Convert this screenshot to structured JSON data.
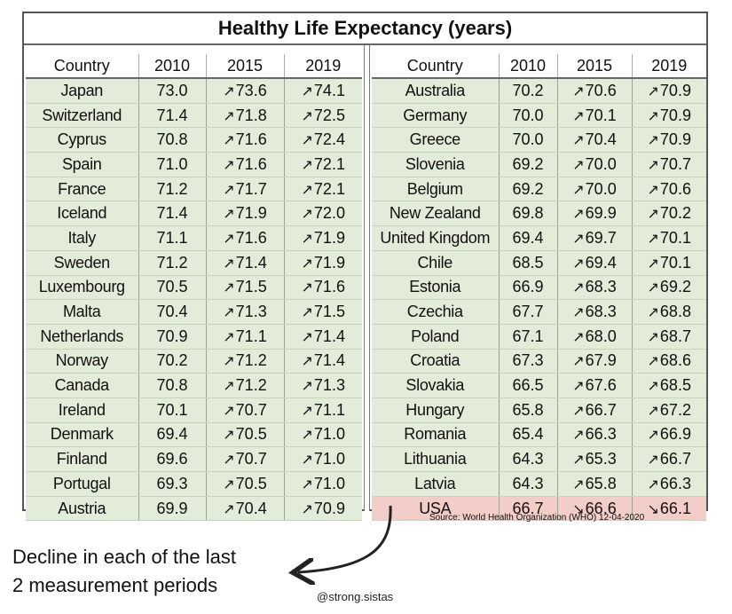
{
  "chart_data": {
    "type": "table",
    "title": "Healthy Life Expectancy (years)",
    "columns": [
      "Country",
      "2010",
      "2015",
      "2019"
    ],
    "arrow_up": "↗",
    "arrow_down": "↘",
    "highlight_color": "#f3cdc8",
    "row_color": "#e3ecd9",
    "left_rows": [
      {
        "country": "Japan",
        "y2010": "73.0",
        "y2015": "73.6",
        "t2015": "up",
        "y2019": "74.1",
        "t2019": "up"
      },
      {
        "country": "Switzerland",
        "y2010": "71.4",
        "y2015": "71.8",
        "t2015": "up",
        "y2019": "72.5",
        "t2019": "up"
      },
      {
        "country": "Cyprus",
        "y2010": "70.8",
        "y2015": "71.6",
        "t2015": "up",
        "y2019": "72.4",
        "t2019": "up"
      },
      {
        "country": "Spain",
        "y2010": "71.0",
        "y2015": "71.6",
        "t2015": "up",
        "y2019": "72.1",
        "t2019": "up"
      },
      {
        "country": "France",
        "y2010": "71.2",
        "y2015": "71.7",
        "t2015": "up",
        "y2019": "72.1",
        "t2019": "up"
      },
      {
        "country": "Iceland",
        "y2010": "71.4",
        "y2015": "71.9",
        "t2015": "up",
        "y2019": "72.0",
        "t2019": "up"
      },
      {
        "country": "Italy",
        "y2010": "71.1",
        "y2015": "71.6",
        "t2015": "up",
        "y2019": "71.9",
        "t2019": "up"
      },
      {
        "country": "Sweden",
        "y2010": "71.2",
        "y2015": "71.4",
        "t2015": "up",
        "y2019": "71.9",
        "t2019": "up"
      },
      {
        "country": "Luxembourg",
        "y2010": "70.5",
        "y2015": "71.5",
        "t2015": "up",
        "y2019": "71.6",
        "t2019": "up"
      },
      {
        "country": "Malta",
        "y2010": "70.4",
        "y2015": "71.3",
        "t2015": "up",
        "y2019": "71.5",
        "t2019": "up"
      },
      {
        "country": "Netherlands",
        "y2010": "70.9",
        "y2015": "71.1",
        "t2015": "up",
        "y2019": "71.4",
        "t2019": "up"
      },
      {
        "country": "Norway",
        "y2010": "70.2",
        "y2015": "71.2",
        "t2015": "up",
        "y2019": "71.4",
        "t2019": "up"
      },
      {
        "country": "Canada",
        "y2010": "70.8",
        "y2015": "71.2",
        "t2015": "up",
        "y2019": "71.3",
        "t2019": "up"
      },
      {
        "country": "Ireland",
        "y2010": "70.1",
        "y2015": "70.7",
        "t2015": "up",
        "y2019": "71.1",
        "t2019": "up"
      },
      {
        "country": "Denmark",
        "y2010": "69.4",
        "y2015": "70.5",
        "t2015": "up",
        "y2019": "71.0",
        "t2019": "up"
      },
      {
        "country": "Finland",
        "y2010": "69.6",
        "y2015": "70.7",
        "t2015": "up",
        "y2019": "71.0",
        "t2019": "up"
      },
      {
        "country": "Portugal",
        "y2010": "69.3",
        "y2015": "70.5",
        "t2015": "up",
        "y2019": "71.0",
        "t2019": "up"
      },
      {
        "country": "Austria",
        "y2010": "69.9",
        "y2015": "70.4",
        "t2015": "up",
        "y2019": "70.9",
        "t2019": "up"
      }
    ],
    "right_rows": [
      {
        "country": "Australia",
        "y2010": "70.2",
        "y2015": "70.6",
        "t2015": "up",
        "y2019": "70.9",
        "t2019": "up"
      },
      {
        "country": "Germany",
        "y2010": "70.0",
        "y2015": "70.1",
        "t2015": "up",
        "y2019": "70.9",
        "t2019": "up"
      },
      {
        "country": "Greece",
        "y2010": "70.0",
        "y2015": "70.4",
        "t2015": "up",
        "y2019": "70.9",
        "t2019": "up"
      },
      {
        "country": "Slovenia",
        "y2010": "69.2",
        "y2015": "70.0",
        "t2015": "up",
        "y2019": "70.7",
        "t2019": "up"
      },
      {
        "country": "Belgium",
        "y2010": "69.2",
        "y2015": "70.0",
        "t2015": "up",
        "y2019": "70.6",
        "t2019": "up"
      },
      {
        "country": "New Zealand",
        "y2010": "69.8",
        "y2015": "69.9",
        "t2015": "up",
        "y2019": "70.2",
        "t2019": "up"
      },
      {
        "country": "United Kingdom",
        "y2010": "69.4",
        "y2015": "69.7",
        "t2015": "up",
        "y2019": "70.1",
        "t2019": "up"
      },
      {
        "country": "Chile",
        "y2010": "68.5",
        "y2015": "69.4",
        "t2015": "up",
        "y2019": "70.1",
        "t2019": "up"
      },
      {
        "country": "Estonia",
        "y2010": "66.9",
        "y2015": "68.3",
        "t2015": "up",
        "y2019": "69.2",
        "t2019": "up"
      },
      {
        "country": "Czechia",
        "y2010": "67.7",
        "y2015": "68.3",
        "t2015": "up",
        "y2019": "68.8",
        "t2019": "up"
      },
      {
        "country": "Poland",
        "y2010": "67.1",
        "y2015": "68.0",
        "t2015": "up",
        "y2019": "68.7",
        "t2019": "up"
      },
      {
        "country": "Croatia",
        "y2010": "67.3",
        "y2015": "67.9",
        "t2015": "up",
        "y2019": "68.6",
        "t2019": "up"
      },
      {
        "country": "Slovakia",
        "y2010": "66.5",
        "y2015": "67.6",
        "t2015": "up",
        "y2019": "68.5",
        "t2019": "up"
      },
      {
        "country": "Hungary",
        "y2010": "65.8",
        "y2015": "66.7",
        "t2015": "up",
        "y2019": "67.2",
        "t2019": "up"
      },
      {
        "country": "Romania",
        "y2010": "65.4",
        "y2015": "66.3",
        "t2015": "up",
        "y2019": "66.9",
        "t2019": "up"
      },
      {
        "country": "Lithuania",
        "y2010": "64.3",
        "y2015": "65.3",
        "t2015": "up",
        "y2019": "66.7",
        "t2019": "up"
      },
      {
        "country": "Latvia",
        "y2010": "64.3",
        "y2015": "65.8",
        "t2015": "up",
        "y2019": "66.3",
        "t2019": "up"
      },
      {
        "country": "USA",
        "y2010": "66.7",
        "y2015": "66.6",
        "t2015": "down",
        "y2019": "66.1",
        "t2019": "down",
        "highlight": true
      }
    ],
    "source": "Source: World Health Organization (WHO) 12-04-2020",
    "annotation_lines": [
      "Decline in each of the last",
      "2 measurement periods"
    ],
    "watermark": "@strong.sistas"
  }
}
